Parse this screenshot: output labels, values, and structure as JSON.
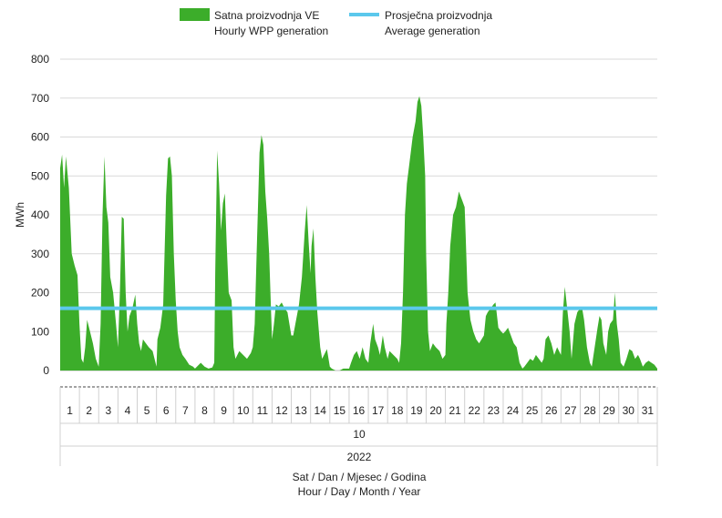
{
  "chart_data": {
    "type": "area",
    "ylabel": "MWh",
    "ylim": [
      0,
      800
    ],
    "yticks": [
      0,
      100,
      200,
      300,
      400,
      500,
      600,
      700,
      800
    ],
    "grid": true,
    "legend": {
      "placement": "top",
      "entries": [
        {
          "line1": "Satna proizvodnja VE",
          "line2": "Hourly WPP generation",
          "color": "#3cad2a",
          "kind": "area"
        },
        {
          "line1": "Prosječna proizvodnja",
          "line2": "Average generation",
          "color": "#5bc8ec",
          "kind": "line"
        }
      ]
    },
    "days": [
      "1",
      "2",
      "3",
      "4",
      "5",
      "6",
      "7",
      "8",
      "9",
      "10",
      "11",
      "12",
      "13",
      "14",
      "15",
      "16",
      "17",
      "18",
      "19",
      "20",
      "21",
      "22",
      "23",
      "24",
      "25",
      "26",
      "27",
      "28",
      "29",
      "30",
      "31"
    ],
    "month_label": "10",
    "year_label": "2022",
    "xlabel_line1": "Sat / Dan / Mjesec / Godina",
    "xlabel_line2": "Hour / Day / Month / Year",
    "average": 160,
    "series": [
      {
        "name": "Satna proizvodnja VE",
        "color": "#3cad2a",
        "x_unit": "day of month (fractional, start of day 1 = 0)",
        "points": [
          [
            0.0,
            520
          ],
          [
            0.1,
            555
          ],
          [
            0.2,
            470
          ],
          [
            0.3,
            550
          ],
          [
            0.45,
            470
          ],
          [
            0.6,
            300
          ],
          [
            0.75,
            270
          ],
          [
            0.9,
            245
          ],
          [
            1.0,
            120
          ],
          [
            1.1,
            30
          ],
          [
            1.2,
            20
          ],
          [
            1.3,
            60
          ],
          [
            1.4,
            130
          ],
          [
            1.55,
            100
          ],
          [
            1.7,
            70
          ],
          [
            1.85,
            30
          ],
          [
            2.0,
            10
          ],
          [
            2.1,
            120
          ],
          [
            2.2,
            400
          ],
          [
            2.3,
            550
          ],
          [
            2.4,
            420
          ],
          [
            2.5,
            380
          ],
          [
            2.6,
            240
          ],
          [
            2.75,
            200
          ],
          [
            2.9,
            120
          ],
          [
            3.0,
            60
          ],
          [
            3.1,
            200
          ],
          [
            3.2,
            395
          ],
          [
            3.3,
            390
          ],
          [
            3.4,
            200
          ],
          [
            3.5,
            100
          ],
          [
            3.6,
            140
          ],
          [
            3.75,
            160
          ],
          [
            3.9,
            195
          ],
          [
            4.0,
            120
          ],
          [
            4.1,
            70
          ],
          [
            4.2,
            50
          ],
          [
            4.3,
            80
          ],
          [
            4.45,
            70
          ],
          [
            4.6,
            60
          ],
          [
            4.8,
            50
          ],
          [
            5.0,
            10
          ],
          [
            5.05,
            80
          ],
          [
            5.2,
            110
          ],
          [
            5.35,
            170
          ],
          [
            5.5,
            450
          ],
          [
            5.6,
            545
          ],
          [
            5.7,
            550
          ],
          [
            5.8,
            500
          ],
          [
            5.9,
            300
          ],
          [
            6.0,
            180
          ],
          [
            6.1,
            100
          ],
          [
            6.2,
            60
          ],
          [
            6.35,
            40
          ],
          [
            6.5,
            30
          ],
          [
            6.7,
            15
          ],
          [
            6.9,
            10
          ],
          [
            7.0,
            5
          ],
          [
            7.1,
            10
          ],
          [
            7.3,
            20
          ],
          [
            7.5,
            10
          ],
          [
            7.7,
            5
          ],
          [
            7.9,
            8
          ],
          [
            8.0,
            20
          ],
          [
            8.05,
            250
          ],
          [
            8.15,
            565
          ],
          [
            8.25,
            480
          ],
          [
            8.35,
            360
          ],
          [
            8.45,
            430
          ],
          [
            8.55,
            455
          ],
          [
            8.65,
            320
          ],
          [
            8.75,
            200
          ],
          [
            8.9,
            180
          ],
          [
            9.0,
            60
          ],
          [
            9.1,
            30
          ],
          [
            9.3,
            50
          ],
          [
            9.5,
            40
          ],
          [
            9.7,
            30
          ],
          [
            9.9,
            45
          ],
          [
            10.0,
            60
          ],
          [
            10.1,
            120
          ],
          [
            10.2,
            300
          ],
          [
            10.35,
            560
          ],
          [
            10.45,
            605
          ],
          [
            10.55,
            580
          ],
          [
            10.65,
            460
          ],
          [
            10.75,
            390
          ],
          [
            10.85,
            300
          ],
          [
            10.95,
            150
          ],
          [
            11.0,
            80
          ],
          [
            11.1,
            120
          ],
          [
            11.2,
            170
          ],
          [
            11.35,
            165
          ],
          [
            11.5,
            175
          ],
          [
            11.65,
            160
          ],
          [
            11.8,
            150
          ],
          [
            12.0,
            90
          ],
          [
            12.1,
            90
          ],
          [
            12.25,
            130
          ],
          [
            12.4,
            170
          ],
          [
            12.55,
            240
          ],
          [
            12.7,
            360
          ],
          [
            12.8,
            425
          ],
          [
            12.9,
            330
          ],
          [
            13.0,
            250
          ],
          [
            13.05,
            320
          ],
          [
            13.15,
            365
          ],
          [
            13.25,
            240
          ],
          [
            13.35,
            150
          ],
          [
            13.5,
            60
          ],
          [
            13.6,
            30
          ],
          [
            13.75,
            45
          ],
          [
            13.85,
            55
          ],
          [
            14.0,
            10
          ],
          [
            14.1,
            5
          ],
          [
            14.3,
            0
          ],
          [
            14.5,
            0
          ],
          [
            14.7,
            5
          ],
          [
            15.0,
            5
          ],
          [
            15.1,
            20
          ],
          [
            15.25,
            40
          ],
          [
            15.4,
            50
          ],
          [
            15.55,
            30
          ],
          [
            15.7,
            60
          ],
          [
            15.85,
            30
          ],
          [
            16.0,
            20
          ],
          [
            16.1,
            70
          ],
          [
            16.25,
            120
          ],
          [
            16.35,
            80
          ],
          [
            16.5,
            60
          ],
          [
            16.6,
            40
          ],
          [
            16.75,
            90
          ],
          [
            16.85,
            60
          ],
          [
            17.0,
            30
          ],
          [
            17.1,
            50
          ],
          [
            17.3,
            40
          ],
          [
            17.5,
            30
          ],
          [
            17.6,
            20
          ],
          [
            17.7,
            70
          ],
          [
            17.8,
            200
          ],
          [
            17.9,
            400
          ],
          [
            18.0,
            480
          ],
          [
            18.1,
            520
          ],
          [
            18.2,
            560
          ],
          [
            18.3,
            600
          ],
          [
            18.45,
            640
          ],
          [
            18.55,
            690
          ],
          [
            18.65,
            705
          ],
          [
            18.75,
            680
          ],
          [
            18.85,
            600
          ],
          [
            18.95,
            500
          ],
          [
            19.0,
            300
          ],
          [
            19.1,
            100
          ],
          [
            19.2,
            50
          ],
          [
            19.35,
            70
          ],
          [
            19.5,
            60
          ],
          [
            19.7,
            50
          ],
          [
            19.85,
            30
          ],
          [
            20.0,
            40
          ],
          [
            20.05,
            120
          ],
          [
            20.15,
            200
          ],
          [
            20.25,
            320
          ],
          [
            20.4,
            400
          ],
          [
            20.55,
            420
          ],
          [
            20.7,
            460
          ],
          [
            20.85,
            440
          ],
          [
            21.0,
            420
          ],
          [
            21.05,
            350
          ],
          [
            21.15,
            200
          ],
          [
            21.3,
            130
          ],
          [
            21.45,
            100
          ],
          [
            21.6,
            80
          ],
          [
            21.75,
            70
          ],
          [
            22.0,
            90
          ],
          [
            22.1,
            140
          ],
          [
            22.2,
            150
          ],
          [
            22.35,
            160
          ],
          [
            22.5,
            170
          ],
          [
            22.6,
            175
          ],
          [
            22.75,
            110
          ],
          [
            22.9,
            100
          ],
          [
            23.0,
            95
          ],
          [
            23.1,
            100
          ],
          [
            23.25,
            110
          ],
          [
            23.4,
            90
          ],
          [
            23.55,
            70
          ],
          [
            23.7,
            60
          ],
          [
            23.85,
            20
          ],
          [
            24.0,
            5
          ],
          [
            24.1,
            10
          ],
          [
            24.25,
            20
          ],
          [
            24.4,
            30
          ],
          [
            24.55,
            25
          ],
          [
            24.7,
            40
          ],
          [
            24.85,
            30
          ],
          [
            25.0,
            20
          ],
          [
            25.1,
            30
          ],
          [
            25.2,
            80
          ],
          [
            25.35,
            90
          ],
          [
            25.5,
            70
          ],
          [
            25.65,
            40
          ],
          [
            25.8,
            60
          ],
          [
            26.0,
            40
          ],
          [
            26.1,
            150
          ],
          [
            26.2,
            215
          ],
          [
            26.3,
            170
          ],
          [
            26.45,
            100
          ],
          [
            26.55,
            30
          ],
          [
            26.7,
            120
          ],
          [
            26.85,
            150
          ],
          [
            27.0,
            160
          ],
          [
            27.1,
            160
          ],
          [
            27.2,
            130
          ],
          [
            27.35,
            60
          ],
          [
            27.5,
            20
          ],
          [
            27.6,
            10
          ],
          [
            27.75,
            60
          ],
          [
            27.9,
            110
          ],
          [
            28.0,
            140
          ],
          [
            28.1,
            130
          ],
          [
            28.2,
            70
          ],
          [
            28.35,
            40
          ],
          [
            28.45,
            100
          ],
          [
            28.55,
            120
          ],
          [
            28.7,
            130
          ],
          [
            28.8,
            200
          ],
          [
            28.9,
            120
          ],
          [
            29.0,
            80
          ],
          [
            29.1,
            20
          ],
          [
            29.25,
            10
          ],
          [
            29.4,
            30
          ],
          [
            29.55,
            55
          ],
          [
            29.7,
            50
          ],
          [
            29.85,
            30
          ],
          [
            30.0,
            40
          ],
          [
            30.1,
            30
          ],
          [
            30.25,
            10
          ],
          [
            30.4,
            20
          ],
          [
            30.55,
            25
          ],
          [
            30.7,
            20
          ],
          [
            30.85,
            15
          ],
          [
            31.0,
            5
          ]
        ]
      },
      {
        "name": "Prosječna proizvodnja",
        "color": "#5bc8ec",
        "value": 160
      }
    ]
  }
}
